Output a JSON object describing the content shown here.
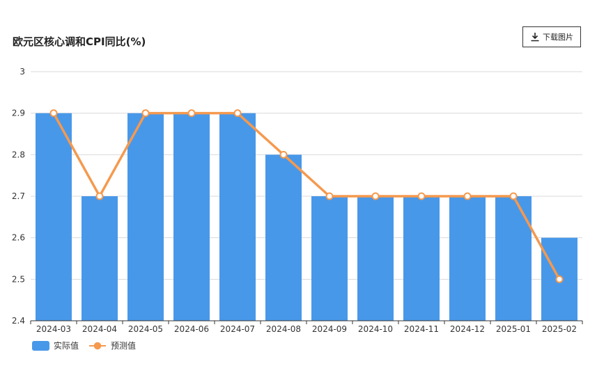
{
  "header": {
    "title": "欧元区核心调和CPI同比(%)",
    "download_label": "下载图片"
  },
  "colors": {
    "bar": "#4898e9",
    "line": "#f5994e",
    "grid": "#d9d9d9",
    "axis": "#333333"
  },
  "chart_data": {
    "type": "bar",
    "title": "欧元区核心调和CPI同比(%)",
    "categories": [
      "2024-03",
      "2024-04",
      "2024-05",
      "2024-06",
      "2024-07",
      "2024-08",
      "2024-09",
      "2024-10",
      "2024-11",
      "2024-12",
      "2025-01",
      "2025-02"
    ],
    "series": [
      {
        "name": "实际值",
        "type": "bar",
        "values": [
          2.9,
          2.7,
          2.9,
          2.9,
          2.9,
          2.8,
          2.7,
          2.7,
          2.7,
          2.7,
          2.7,
          2.6
        ]
      },
      {
        "name": "预测值",
        "type": "line",
        "values": [
          2.9,
          2.7,
          2.9,
          2.9,
          2.9,
          2.8,
          2.7,
          2.7,
          2.7,
          2.7,
          2.7,
          2.5
        ]
      }
    ],
    "yticks": [
      "2.4",
      "2.5",
      "2.6",
      "2.7",
      "2.8",
      "2.9",
      "3"
    ],
    "ylim": [
      2.4,
      3.0
    ],
    "grid": true,
    "legend_position": "bottom-left"
  }
}
